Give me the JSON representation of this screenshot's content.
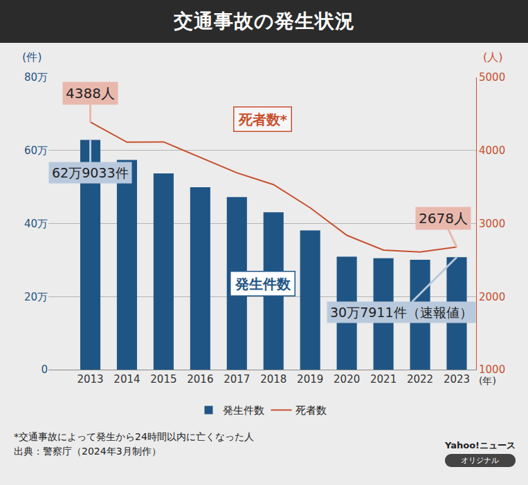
{
  "chart_data": {
    "type": "bar",
    "title": "交通事故の発生状況",
    "categories": [
      "2013",
      "2014",
      "2015",
      "2016",
      "2017",
      "2018",
      "2019",
      "2020",
      "2021",
      "2022",
      "2023"
    ],
    "x_unit": "(年)",
    "series": [
      {
        "name": "発生件数",
        "type": "bar",
        "axis": "y",
        "color": "#1f5585",
        "label": "発生件数",
        "unit_label": "(件)",
        "values": [
          629033,
          573842,
          536899,
          499201,
          472165,
          430601,
          381237,
          309178,
          305196,
          300839,
          307911
        ]
      },
      {
        "name": "死者数",
        "type": "line",
        "axis": "y2",
        "color": "#c8502e",
        "label": "死者数*",
        "unit_label": "(人)",
        "values": [
          4388,
          4113,
          4117,
          3904,
          3694,
          3532,
          3215,
          2839,
          2636,
          2610,
          2678
        ]
      }
    ],
    "ylim": [
      0,
      800000
    ],
    "yticks": [
      0,
      {
        "value": 200000,
        "label": "20万"
      },
      {
        "value": 400000,
        "label": "40万"
      },
      {
        "value": 600000,
        "label": "60万"
      },
      {
        "value": 800000,
        "label": "80万"
      }
    ],
    "y2lim": [
      1000,
      5000
    ],
    "y2ticks": [
      1000,
      2000,
      3000,
      4000,
      5000
    ],
    "grid": true,
    "legend": "bottom",
    "annotations": [
      {
        "series": "死者数",
        "category": "2013",
        "text": "4388人"
      },
      {
        "series": "発生件数",
        "category": "2013",
        "text": "62万9033件"
      },
      {
        "series": "死者数",
        "category": "2023",
        "text": "2678人"
      },
      {
        "series": "発生件数",
        "category": "2023",
        "text": "30万7911件（速報値）"
      }
    ]
  },
  "footnote": "*交通事故によって発生から24時間以内に亡くなった人",
  "source": "出典：警察庁（2024年3月制作）",
  "brand": "Yahoo!ニュース",
  "badge": "オリジナル"
}
